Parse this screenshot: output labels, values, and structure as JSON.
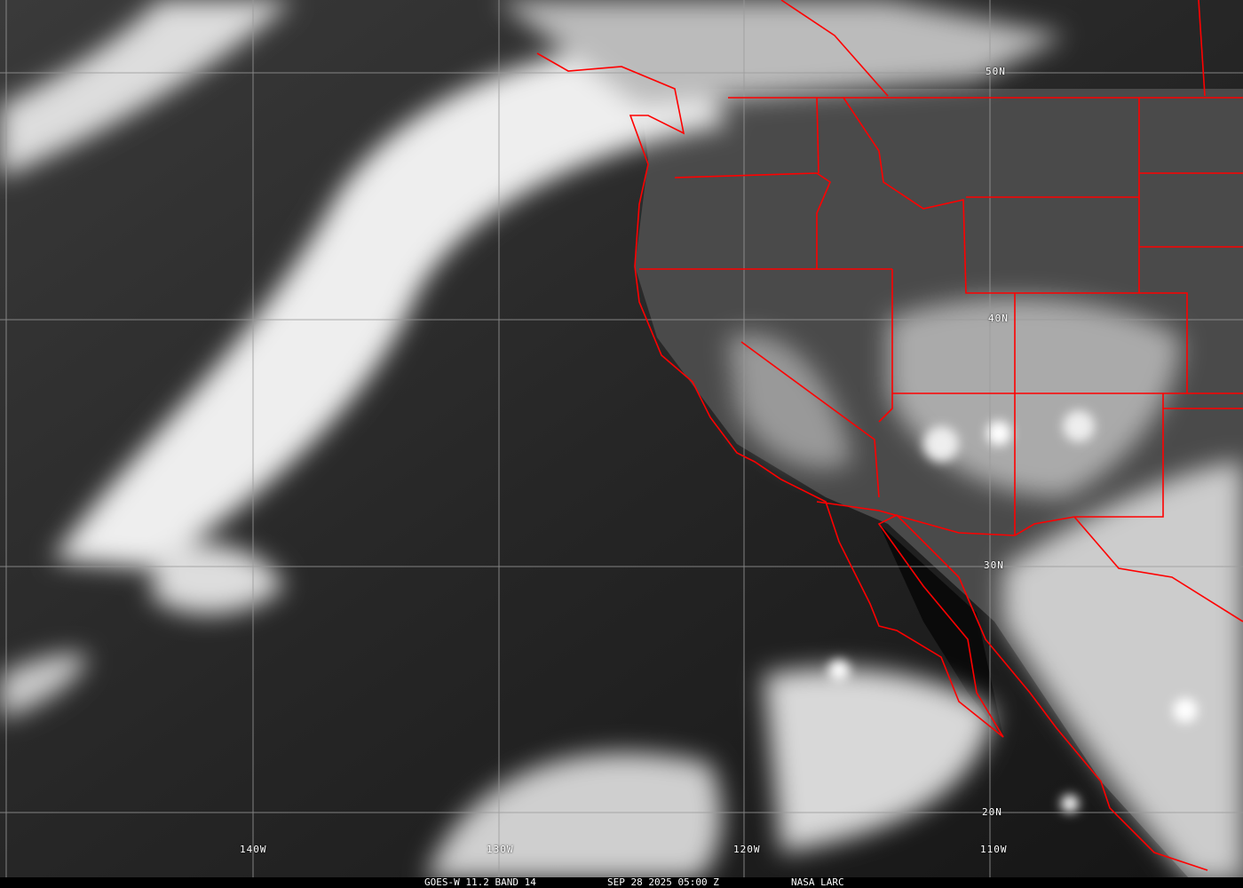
{
  "caption": {
    "satellite_band": "GOES-W 11.2 BAND 14",
    "datetime": "SEP 28 2025 05:00 Z",
    "source": "NASA LARC"
  },
  "grid": {
    "latitude_labels": [
      "50N",
      "40N",
      "30N",
      "20N"
    ],
    "longitude_labels": [
      "140W",
      "130W",
      "120W",
      "110W"
    ]
  },
  "colors": {
    "borders": "#ff0000",
    "grid": "#9a9a9a",
    "clouds": "#f2f2f2"
  }
}
